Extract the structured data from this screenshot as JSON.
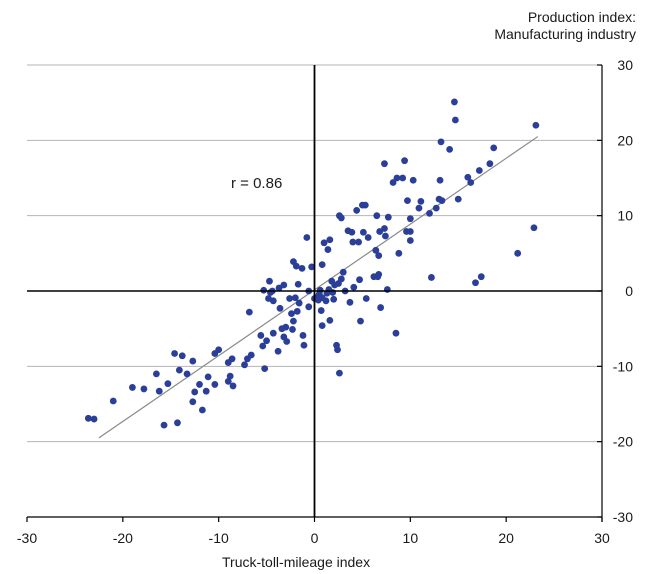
{
  "chart_data": {
    "type": "scatter",
    "title": "",
    "ylabel_line1": "Production index:",
    "ylabel_line2": "Manufacturing industry",
    "xlabel": "Truck-toll-mileage index",
    "annotation": "r = 0.86",
    "xlim": [
      -30,
      30
    ],
    "ylim": [
      -30,
      30
    ],
    "x_ticks": [
      "-30",
      "-20",
      "-10",
      "0",
      "10",
      "20",
      "30"
    ],
    "y_ticks": [
      "30",
      "20",
      "10",
      "0",
      "-10",
      "-20",
      "-30"
    ],
    "grid": "horizontal",
    "colors": {
      "points": "#2b3f98",
      "trend": "#8a8a8a",
      "grid": "#b5b5b5",
      "axis": "#000000"
    },
    "trend_line": {
      "x": [
        -22.5,
        23.3
      ],
      "y": [
        -19.5,
        20.5
      ]
    },
    "points": [
      {
        "x": -23.6,
        "y": -16.9
      },
      {
        "x": -23.0,
        "y": -17.0
      },
      {
        "x": -21.0,
        "y": -14.6
      },
      {
        "x": -19.0,
        "y": -12.8
      },
      {
        "x": -17.8,
        "y": -13.0
      },
      {
        "x": -16.5,
        "y": -11.0
      },
      {
        "x": -16.2,
        "y": -13.3
      },
      {
        "x": -15.7,
        "y": -17.8
      },
      {
        "x": -15.3,
        "y": -12.3
      },
      {
        "x": -14.6,
        "y": -8.3
      },
      {
        "x": -14.1,
        "y": -10.5
      },
      {
        "x": -14.3,
        "y": -17.5
      },
      {
        "x": -13.8,
        "y": -8.6
      },
      {
        "x": -13.3,
        "y": -11.0
      },
      {
        "x": -12.7,
        "y": -9.3
      },
      {
        "x": -12.7,
        "y": -14.7
      },
      {
        "x": -12.5,
        "y": -13.4
      },
      {
        "x": -12.0,
        "y": -12.4
      },
      {
        "x": -11.7,
        "y": -15.8
      },
      {
        "x": -11.3,
        "y": -13.3
      },
      {
        "x": -11.1,
        "y": -11.4
      },
      {
        "x": -10.4,
        "y": -12.4
      },
      {
        "x": -10.4,
        "y": -8.3
      },
      {
        "x": -10.0,
        "y": -7.8
      },
      {
        "x": -9.0,
        "y": -12.0
      },
      {
        "x": -9.0,
        "y": -9.5
      },
      {
        "x": -8.8,
        "y": -11.3
      },
      {
        "x": -8.6,
        "y": -9.0
      },
      {
        "x": -8.5,
        "y": -12.6
      },
      {
        "x": -7.3,
        "y": -9.8
      },
      {
        "x": -7.0,
        "y": -9.0
      },
      {
        "x": -6.6,
        "y": -8.5
      },
      {
        "x": -6.8,
        "y": -2.8
      },
      {
        "x": -5.6,
        "y": -5.9
      },
      {
        "x": -5.4,
        "y": -7.3
      },
      {
        "x": -5.2,
        "y": -10.3
      },
      {
        "x": -5.0,
        "y": -6.6
      },
      {
        "x": -5.3,
        "y": 0.1
      },
      {
        "x": -4.8,
        "y": -1.0
      },
      {
        "x": -4.6,
        "y": -0.2
      },
      {
        "x": -4.3,
        "y": -1.3
      },
      {
        "x": -4.4,
        "y": 0.0
      },
      {
        "x": -4.3,
        "y": -5.6
      },
      {
        "x": -4.7,
        "y": 1.3
      },
      {
        "x": -3.8,
        "y": -8.0
      },
      {
        "x": -3.7,
        "y": 0.4
      },
      {
        "x": -3.6,
        "y": -2.3
      },
      {
        "x": -3.4,
        "y": -5.0
      },
      {
        "x": -3.2,
        "y": -6.1
      },
      {
        "x": -3.0,
        "y": -4.8
      },
      {
        "x": -3.2,
        "y": 0.8
      },
      {
        "x": -2.9,
        "y": -6.7
      },
      {
        "x": -2.6,
        "y": -1.0
      },
      {
        "x": -2.3,
        "y": -5.1
      },
      {
        "x": -2.4,
        "y": -3.0
      },
      {
        "x": -2.2,
        "y": -4.0
      },
      {
        "x": -2.2,
        "y": 3.9
      },
      {
        "x": -1.9,
        "y": 3.3
      },
      {
        "x": -2.0,
        "y": -0.9
      },
      {
        "x": -1.8,
        "y": -2.7
      },
      {
        "x": -1.6,
        "y": -1.6
      },
      {
        "x": -1.7,
        "y": 0.9
      },
      {
        "x": -1.2,
        "y": -5.9
      },
      {
        "x": -1.1,
        "y": -7.2
      },
      {
        "x": -1.3,
        "y": 3.0
      },
      {
        "x": -0.8,
        "y": 7.1
      },
      {
        "x": -0.6,
        "y": -2.1
      },
      {
        "x": -0.6,
        "y": 0.0
      },
      {
        "x": -0.3,
        "y": 3.2
      },
      {
        "x": 0.0,
        "y": -1.0
      },
      {
        "x": 0.3,
        "y": -0.8
      },
      {
        "x": 0.4,
        "y": -1.2
      },
      {
        "x": 0.5,
        "y": -0.4
      },
      {
        "x": 0.6,
        "y": 0.1
      },
      {
        "x": 0.7,
        "y": -2.6
      },
      {
        "x": 0.8,
        "y": -0.9
      },
      {
        "x": 0.8,
        "y": 3.5
      },
      {
        "x": 0.8,
        "y": -4.6
      },
      {
        "x": 1.0,
        "y": 6.4
      },
      {
        "x": 1.2,
        "y": -1.3
      },
      {
        "x": 1.3,
        "y": -0.3
      },
      {
        "x": 1.4,
        "y": 5.5
      },
      {
        "x": 1.5,
        "y": 0.2
      },
      {
        "x": 1.6,
        "y": 6.8
      },
      {
        "x": 1.6,
        "y": -3.9
      },
      {
        "x": 1.8,
        "y": 1.3
      },
      {
        "x": 1.9,
        "y": -0.2
      },
      {
        "x": 2.0,
        "y": -1.1
      },
      {
        "x": 2.1,
        "y": 0.8
      },
      {
        "x": 2.3,
        "y": -7.2
      },
      {
        "x": 2.4,
        "y": -7.8
      },
      {
        "x": 2.5,
        "y": 1.0
      },
      {
        "x": 2.6,
        "y": 10.0
      },
      {
        "x": 2.6,
        "y": -10.9
      },
      {
        "x": 2.8,
        "y": 9.7
      },
      {
        "x": 2.8,
        "y": 1.6
      },
      {
        "x": 3.0,
        "y": 2.5
      },
      {
        "x": 3.2,
        "y": 0.0
      },
      {
        "x": 3.5,
        "y": 8.0
      },
      {
        "x": 3.7,
        "y": -1.5
      },
      {
        "x": 3.9,
        "y": 7.8
      },
      {
        "x": 4.0,
        "y": 6.5
      },
      {
        "x": 4.1,
        "y": 0.5
      },
      {
        "x": 4.4,
        "y": 10.7
      },
      {
        "x": 4.6,
        "y": 6.5
      },
      {
        "x": 4.7,
        "y": 1.5
      },
      {
        "x": 4.8,
        "y": -4.0
      },
      {
        "x": 5.0,
        "y": 11.4
      },
      {
        "x": 5.1,
        "y": 7.8
      },
      {
        "x": 5.3,
        "y": 11.4
      },
      {
        "x": 5.4,
        "y": -1.0
      },
      {
        "x": 5.6,
        "y": 7.1
      },
      {
        "x": 6.2,
        "y": 1.9
      },
      {
        "x": 6.4,
        "y": 5.4
      },
      {
        "x": 6.5,
        "y": 10.0
      },
      {
        "x": 6.6,
        "y": 1.9
      },
      {
        "x": 6.7,
        "y": 4.7
      },
      {
        "x": 6.8,
        "y": 7.9
      },
      {
        "x": 6.7,
        "y": 2.2
      },
      {
        "x": 6.9,
        "y": -2.2
      },
      {
        "x": 7.3,
        "y": 16.9
      },
      {
        "x": 7.3,
        "y": 8.3
      },
      {
        "x": 7.4,
        "y": 7.3
      },
      {
        "x": 7.6,
        "y": 0.2
      },
      {
        "x": 7.7,
        "y": 9.8
      },
      {
        "x": 8.2,
        "y": 14.4
      },
      {
        "x": 8.5,
        "y": -5.6
      },
      {
        "x": 8.6,
        "y": 15.0
      },
      {
        "x": 8.8,
        "y": 5.0
      },
      {
        "x": 9.2,
        "y": 15.0
      },
      {
        "x": 9.4,
        "y": 17.3
      },
      {
        "x": 9.6,
        "y": 7.9
      },
      {
        "x": 9.7,
        "y": 12.0
      },
      {
        "x": 10.0,
        "y": 6.7
      },
      {
        "x": 10.0,
        "y": 7.9
      },
      {
        "x": 10.0,
        "y": 9.6
      },
      {
        "x": 10.3,
        "y": 14.7
      },
      {
        "x": 10.9,
        "y": 11.0
      },
      {
        "x": 11.1,
        "y": 11.9
      },
      {
        "x": 12.0,
        "y": 10.3
      },
      {
        "x": 12.2,
        "y": 1.8
      },
      {
        "x": 12.7,
        "y": 11.0
      },
      {
        "x": 13.0,
        "y": 12.2
      },
      {
        "x": 13.1,
        "y": 14.7
      },
      {
        "x": 13.2,
        "y": 19.8
      },
      {
        "x": 13.3,
        "y": 12.0
      },
      {
        "x": 14.1,
        "y": 18.8
      },
      {
        "x": 14.6,
        "y": 25.1
      },
      {
        "x": 14.7,
        "y": 22.7
      },
      {
        "x": 15.0,
        "y": 12.2
      },
      {
        "x": 16.0,
        "y": 15.1
      },
      {
        "x": 16.3,
        "y": 14.4
      },
      {
        "x": 16.8,
        "y": 1.1
      },
      {
        "x": 17.2,
        "y": 16.0
      },
      {
        "x": 17.4,
        "y": 1.9
      },
      {
        "x": 18.3,
        "y": 16.9
      },
      {
        "x": 18.7,
        "y": 19.0
      },
      {
        "x": 21.2,
        "y": 5.0
      },
      {
        "x": 22.9,
        "y": 8.4
      },
      {
        "x": 23.1,
        "y": 22.0
      }
    ]
  }
}
